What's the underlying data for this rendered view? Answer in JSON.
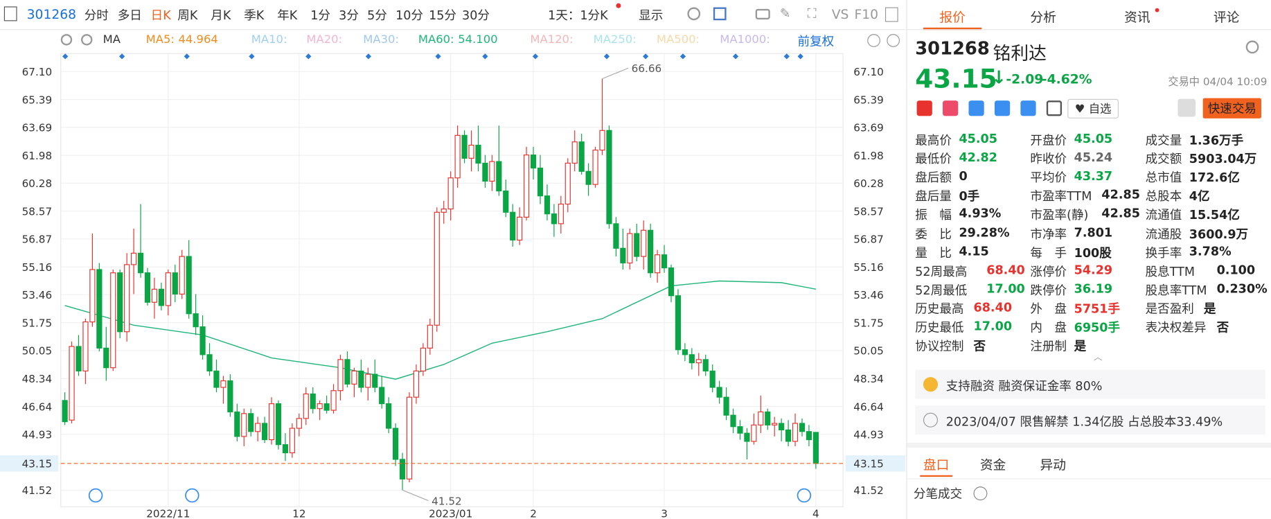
{
  "toolbar": {
    "code": "301268",
    "periods": [
      "分时",
      "多日",
      "日K",
      "周K",
      "月K",
      "季K",
      "年K",
      "1分",
      "3分",
      "5分",
      "10分",
      "15分",
      "30分"
    ],
    "active": 2,
    "range": "1天：1分K",
    "show": "显示",
    "vs": "VS",
    "f10": "F10"
  },
  "ma_bar": {
    "ma": "MA",
    "items": [
      {
        "label": "MA5:",
        "value": "44.964",
        "color": "#f08c1e"
      },
      {
        "label": "MA10:",
        "value": "",
        "color": "#9fd0f0"
      },
      {
        "label": "MA20:",
        "value": "",
        "color": "#f5b4cf"
      },
      {
        "label": "MA30:",
        "value": "",
        "color": "#9fc8ef"
      },
      {
        "label": "MA60:",
        "value": "54.100",
        "color": "#1fb57a"
      },
      {
        "label": "MA120:",
        "value": "",
        "color": "#f7b6b6"
      },
      {
        "label": "MA250:",
        "value": "",
        "color": "#a8e4ee"
      },
      {
        "label": "MA500:",
        "value": "",
        "color": "#f7d9a8"
      },
      {
        "label": "MA1000:",
        "value": "",
        "color": "#c8b8ec"
      }
    ],
    "adjust": "前复权"
  },
  "chart": {
    "type": "candlestick",
    "ylim": [
      40.5,
      68.2
    ],
    "yticks": [
      {
        "value": 67.1,
        "label": "67.10"
      },
      65.39,
      63.69,
      61.98,
      60.28,
      58.57,
      56.87,
      55.16,
      53.46,
      51.75,
      50.05,
      48.34,
      46.64,
      44.93,
      41.52
    ],
    "last_price": 43.15,
    "max_label": "66.66",
    "max_index": 78,
    "min_label": "41.52",
    "min_index": 49,
    "up_color": "#e8322e",
    "down_color": "#0aa545",
    "xlabels": [
      {
        "index": 15,
        "label": "2022/11"
      },
      {
        "index": 34,
        "label": "12"
      },
      {
        "index": 56,
        "label": "2023/01"
      },
      {
        "index": 68,
        "label": "2"
      },
      {
        "index": 87,
        "label": "3"
      },
      {
        "index": 109,
        "label": "4"
      }
    ],
    "ma60": {
      "color": "#1fb57a",
      "x": [
        0,
        10,
        20,
        30,
        40,
        48,
        55,
        62,
        70,
        78,
        88,
        95,
        104,
        109
      ],
      "y": [
        52.8,
        51.6,
        51.0,
        49.6,
        49.0,
        48.3,
        49.2,
        50.5,
        51.2,
        52.0,
        54.0,
        54.3,
        54.2,
        53.8
      ]
    },
    "candles": [
      [
        47.0,
        47.5,
        45.5,
        45.7
      ],
      [
        45.8,
        50.6,
        45.6,
        50.3
      ],
      [
        50.3,
        51.0,
        48.5,
        48.8
      ],
      [
        48.8,
        52.0,
        48.0,
        51.8
      ],
      [
        51.8,
        57.2,
        51.5,
        55.0
      ],
      [
        55.0,
        55.4,
        50.0,
        50.2
      ],
      [
        50.2,
        51.5,
        48.2,
        49.0
      ],
      [
        49.0,
        55.0,
        48.8,
        54.8
      ],
      [
        54.8,
        55.0,
        50.8,
        51.2
      ],
      [
        51.2,
        56.0,
        50.6,
        55.3
      ],
      [
        55.3,
        57.5,
        53.5,
        56.0
      ],
      [
        56.0,
        59.0,
        54.5,
        54.8
      ],
      [
        54.8,
        55.1,
        52.8,
        53.0
      ],
      [
        53.0,
        54.5,
        52.0,
        53.8
      ],
      [
        53.8,
        54.2,
        52.5,
        52.8
      ],
      [
        52.8,
        55.0,
        52.2,
        54.8
      ],
      [
        54.8,
        55.3,
        53.0,
        53.5
      ],
      [
        53.5,
        56.2,
        53.2,
        55.8
      ],
      [
        55.8,
        56.8,
        52.0,
        52.3
      ],
      [
        52.3,
        53.5,
        51.0,
        51.5
      ],
      [
        51.5,
        52.2,
        49.5,
        49.8
      ],
      [
        49.8,
        50.5,
        48.5,
        48.8
      ],
      [
        48.8,
        49.5,
        47.5,
        47.8
      ],
      [
        47.8,
        48.5,
        46.8,
        48.2
      ],
      [
        48.2,
        48.6,
        46.0,
        46.3
      ],
      [
        46.3,
        46.8,
        44.5,
        44.8
      ],
      [
        44.8,
        46.5,
        44.2,
        46.2
      ],
      [
        46.2,
        46.5,
        44.8,
        45.1
      ],
      [
        45.1,
        46.0,
        44.5,
        45.6
      ],
      [
        45.6,
        46.0,
        44.4,
        44.6
      ],
      [
        44.6,
        47.2,
        44.3,
        46.8
      ],
      [
        46.8,
        47.0,
        44.0,
        44.3
      ],
      [
        44.3,
        45.0,
        43.3,
        43.8
      ],
      [
        43.8,
        45.6,
        43.5,
        45.3
      ],
      [
        45.3,
        46.2,
        44.8,
        45.9
      ],
      [
        45.9,
        47.8,
        45.5,
        47.4
      ],
      [
        47.4,
        47.8,
        46.2,
        46.5
      ],
      [
        46.5,
        47.0,
        45.8,
        46.8
      ],
      [
        46.8,
        47.3,
        46.2,
        46.4
      ],
      [
        46.4,
        48.0,
        46.2,
        47.6
      ],
      [
        47.6,
        49.8,
        47.0,
        49.5
      ],
      [
        49.5,
        50.0,
        47.8,
        48.0
      ],
      [
        48.0,
        49.0,
        47.2,
        48.8
      ],
      [
        48.8,
        49.5,
        47.5,
        47.8
      ],
      [
        47.8,
        49.0,
        47.0,
        48.6
      ],
      [
        48.6,
        49.5,
        47.5,
        47.8
      ],
      [
        47.8,
        48.5,
        46.5,
        46.8
      ],
      [
        46.8,
        47.2,
        45.0,
        45.3
      ],
      [
        45.3,
        45.6,
        43.0,
        43.4
      ],
      [
        43.4,
        43.8,
        41.52,
        42.2
      ],
      [
        42.2,
        47.5,
        42.0,
        47.2
      ],
      [
        47.2,
        49.2,
        46.8,
        48.8
      ],
      [
        48.8,
        50.5,
        48.5,
        50.2
      ],
      [
        50.2,
        52.0,
        49.8,
        51.6
      ],
      [
        51.6,
        58.8,
        51.2,
        58.5
      ],
      [
        58.5,
        59.2,
        57.8,
        58.7
      ],
      [
        58.7,
        61.0,
        58.0,
        60.6
      ],
      [
        60.6,
        63.8,
        60.0,
        63.2
      ],
      [
        63.2,
        63.5,
        61.5,
        61.8
      ],
      [
        61.8,
        63.5,
        61.0,
        62.6
      ],
      [
        62.6,
        63.8,
        61.0,
        61.5
      ],
      [
        61.5,
        62.0,
        60.0,
        60.4
      ],
      [
        60.4,
        62.0,
        59.8,
        61.6
      ],
      [
        61.6,
        63.8,
        59.5,
        59.8
      ],
      [
        59.8,
        60.5,
        58.2,
        58.5
      ],
      [
        58.5,
        59.0,
        56.4,
        56.8
      ],
      [
        56.8,
        58.8,
        56.5,
        58.2
      ],
      [
        58.2,
        62.5,
        58.0,
        62.0
      ],
      [
        62.0,
        62.5,
        60.5,
        61.2
      ],
      [
        61.2,
        62.0,
        59.0,
        59.5
      ],
      [
        59.5,
        60.2,
        58.0,
        58.4
      ],
      [
        58.4,
        59.0,
        57.0,
        57.8
      ],
      [
        57.8,
        59.5,
        57.2,
        59.0
      ],
      [
        59.0,
        61.8,
        58.5,
        61.5
      ],
      [
        61.5,
        63.5,
        61.0,
        62.8
      ],
      [
        62.8,
        63.3,
        60.8,
        61.0
      ],
      [
        61.0,
        61.5,
        59.5,
        60.2
      ],
      [
        60.2,
        62.5,
        60.0,
        62.3
      ],
      [
        62.3,
        66.66,
        62.0,
        63.5
      ],
      [
        63.5,
        63.8,
        57.5,
        57.8
      ],
      [
        57.8,
        58.2,
        55.8,
        56.3
      ],
      [
        56.3,
        57.5,
        55.0,
        55.4
      ],
      [
        55.4,
        57.5,
        55.0,
        57.2
      ],
      [
        57.2,
        57.8,
        55.5,
        55.8
      ],
      [
        55.8,
        58.0,
        55.0,
        57.4
      ],
      [
        57.4,
        57.8,
        54.5,
        54.8
      ],
      [
        54.8,
        56.2,
        54.2,
        55.9
      ],
      [
        55.9,
        56.5,
        54.8,
        55.1
      ],
      [
        55.1,
        55.3,
        53.0,
        53.4
      ],
      [
        53.4,
        53.8,
        49.8,
        50.1
      ],
      [
        50.1,
        50.5,
        49.4,
        49.8
      ],
      [
        49.8,
        50.2,
        48.9,
        49.3
      ],
      [
        49.3,
        49.9,
        48.5,
        49.5
      ],
      [
        49.5,
        49.8,
        48.5,
        48.8
      ],
      [
        48.8,
        49.2,
        47.5,
        47.8
      ],
      [
        47.8,
        48.2,
        46.8,
        47.2
      ],
      [
        47.2,
        47.8,
        45.8,
        46.1
      ],
      [
        46.1,
        46.5,
        45.0,
        45.4
      ],
      [
        45.4,
        45.8,
        44.6,
        45.0
      ],
      [
        45.0,
        45.3,
        43.4,
        44.5
      ],
      [
        44.5,
        46.2,
        44.3,
        45.5
      ],
      [
        45.5,
        47.3,
        45.0,
        46.3
      ],
      [
        46.3,
        46.5,
        45.2,
        45.5
      ],
      [
        45.5,
        46.0,
        44.8,
        45.6
      ],
      [
        45.6,
        45.9,
        44.5,
        45.2
      ],
      [
        45.2,
        45.8,
        44.2,
        44.5
      ],
      [
        44.5,
        46.2,
        44.2,
        45.6
      ],
      [
        45.6,
        45.9,
        44.8,
        45.1
      ],
      [
        45.1,
        45.5,
        44.2,
        44.6
      ],
      [
        45.05,
        45.05,
        42.82,
        43.15
      ]
    ]
  },
  "panel": {
    "tabs": [
      "报价",
      "分析",
      "资讯",
      "评论"
    ],
    "code": "301268",
    "name": "铭利达",
    "price": "43.15",
    "change": "-2.09",
    "change_pct": "-4.62%",
    "status": "交易中 04/04 10:09",
    "watch": "自选",
    "trade": "快速交易",
    "columns": [
      [
        {
          "label": "最高价",
          "value": "45.05",
          "color": "#0aa545"
        },
        {
          "label": "最低价",
          "value": "42.82",
          "color": "#0aa545"
        },
        {
          "label": "盘后额",
          "value": "0",
          "color": "#222"
        },
        {
          "label": "盘后量",
          "value": "0手",
          "color": "#222"
        },
        {
          "label": "振　幅",
          "value": "4.93%",
          "color": "#222"
        },
        {
          "label": "委　比",
          "value": "29.28%",
          "color": "#222"
        },
        {
          "label": "量　比",
          "value": "4.15",
          "color": "#222"
        },
        {
          "label": "52周最高",
          "value": "68.40",
          "color": "#e8322e"
        },
        {
          "label": "52周最低",
          "value": "17.00",
          "color": "#0aa545"
        },
        {
          "label": "历史最高",
          "value": "68.40",
          "color": "#e8322e"
        },
        {
          "label": "历史最低",
          "value": "17.00",
          "color": "#0aa545"
        },
        {
          "label": "协议控制",
          "value": "否",
          "color": "#222"
        }
      ],
      [
        {
          "label": "开盘价",
          "value": "45.05",
          "color": "#0aa545"
        },
        {
          "label": "昨收价",
          "value": "45.24",
          "color": "#666"
        },
        {
          "label": "平均价",
          "value": "43.37",
          "color": "#0aa545"
        },
        {
          "label": "市盈率TTM",
          "value": "42.85",
          "color": "#222"
        },
        {
          "label": "市盈率(静)",
          "value": "42.85",
          "color": "#222"
        },
        {
          "label": "市净率",
          "value": "7.801",
          "color": "#222"
        },
        {
          "label": "每　手",
          "value": "100股",
          "color": "#222"
        },
        {
          "label": "涨停价",
          "value": "54.29",
          "color": "#e8322e"
        },
        {
          "label": "跌停价",
          "value": "36.19",
          "color": "#0aa545"
        },
        {
          "label": "外　盘",
          "value": "5751手",
          "color": "#e8322e"
        },
        {
          "label": "内　盘",
          "value": "6950手",
          "color": "#0aa545"
        },
        {
          "label": "注册制",
          "value": "是",
          "color": "#222"
        }
      ],
      [
        {
          "label": "成交量",
          "value": "1.36万手",
          "color": "#222"
        },
        {
          "label": "成交额",
          "value": "5903.04万",
          "color": "#222"
        },
        {
          "label": "总市值",
          "value": "172.6亿",
          "color": "#222"
        },
        {
          "label": "总股本",
          "value": "4亿",
          "color": "#222"
        },
        {
          "label": "流通值",
          "value": "15.54亿",
          "color": "#222"
        },
        {
          "label": "流通股",
          "value": "3600.9万",
          "color": "#222"
        },
        {
          "label": "换手率",
          "value": "3.78%",
          "color": "#222"
        },
        {
          "label": "股息TTM",
          "value": "0.100",
          "color": "#222"
        },
        {
          "label": "股息率TTM",
          "value": "0.230%",
          "color": "#222"
        },
        {
          "label": "是否盈利",
          "value": "是",
          "color": "#222"
        },
        {
          "label": "表决权差异",
          "value": "否",
          "color": "#222"
        }
      ]
    ],
    "notice1": "支持融资 融资保证金率 80%",
    "notice2": "2023/04/07  限售解禁 1.34亿股 占总股本33.49%",
    "bottom_tabs": [
      "盘口",
      "资金",
      "异动"
    ],
    "trades": "分笔成交"
  }
}
